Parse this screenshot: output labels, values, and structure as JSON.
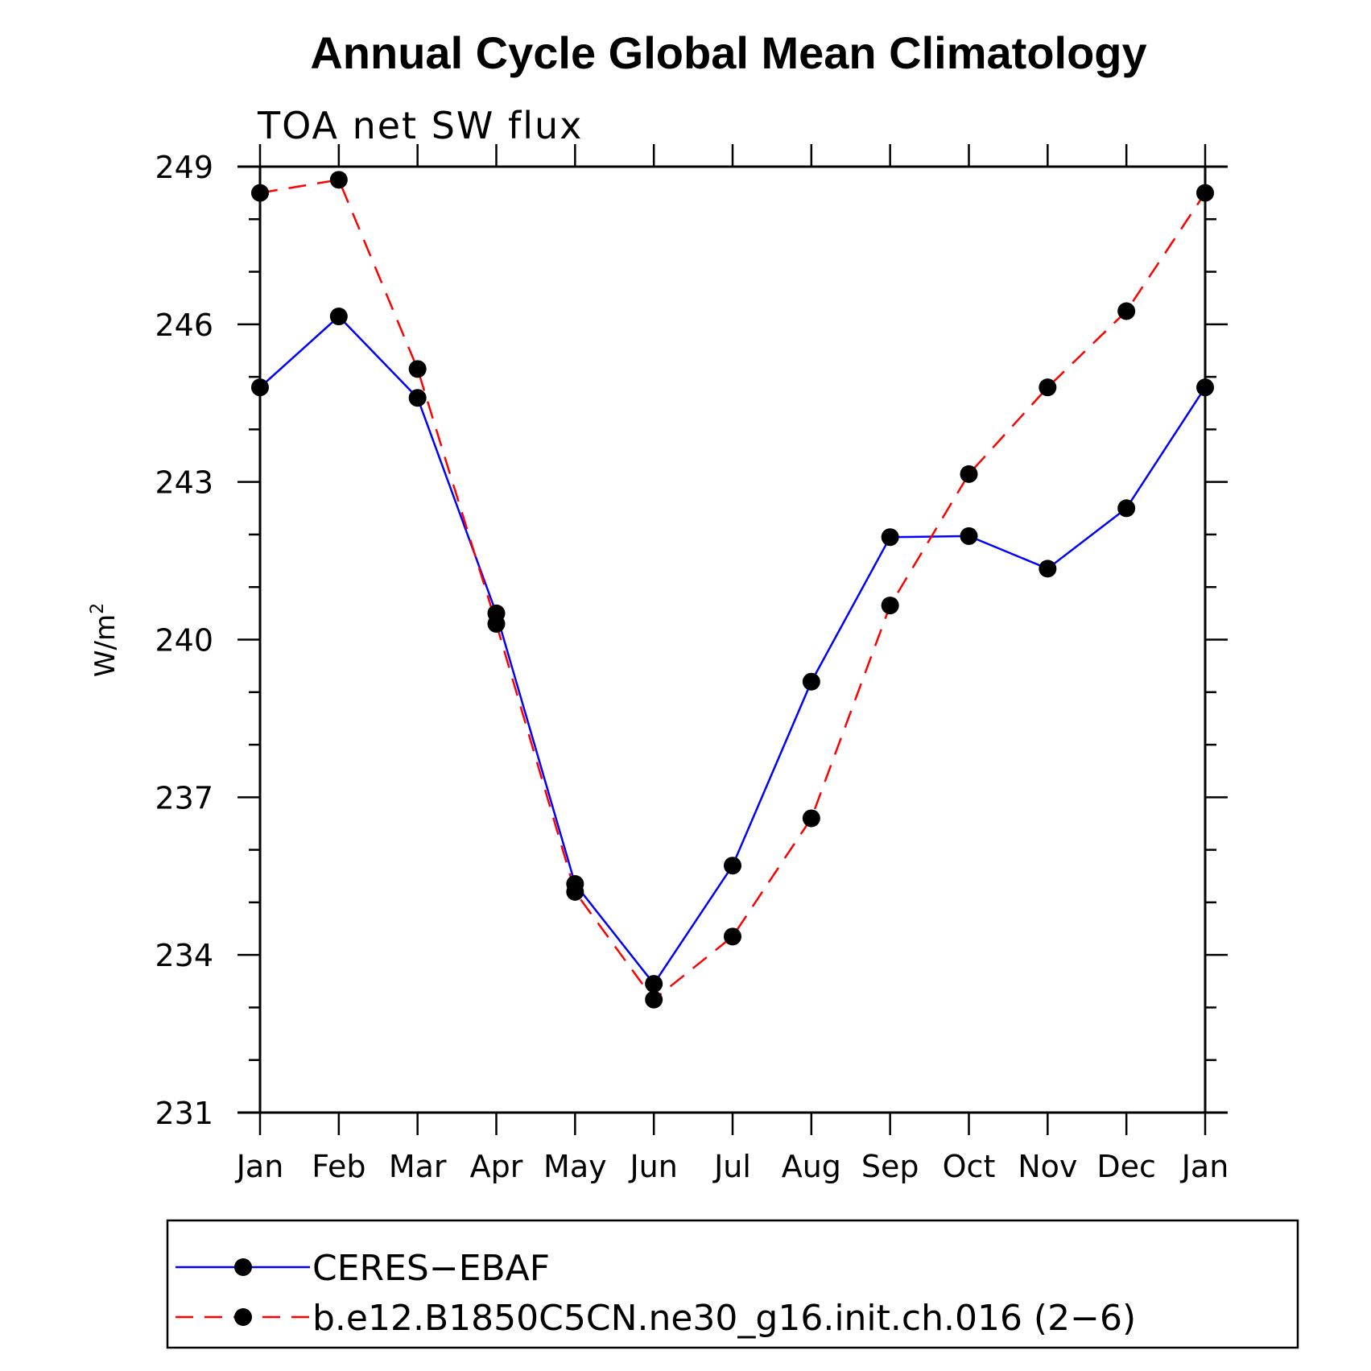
{
  "chart_data": {
    "type": "line",
    "title": "Annual Cycle Global Mean Climatology",
    "subtitle": "TOA net SW flux",
    "ylabel": "W/m²",
    "ylabel_base": "W/m",
    "ylabel_sup": "2",
    "xlabel": "",
    "categories": [
      "Jan",
      "Feb",
      "Mar",
      "Apr",
      "May",
      "Jun",
      "Jul",
      "Aug",
      "Sep",
      "Oct",
      "Nov",
      "Dec",
      "Jan"
    ],
    "ylim": [
      231,
      249
    ],
    "yticks": [
      231,
      234,
      237,
      240,
      243,
      246,
      249
    ],
    "yminor_step": 1,
    "series": [
      {
        "name": "CERES−EBAF",
        "color": "#0000ff",
        "dash": "solid",
        "marker": "circle",
        "values": [
          244.8,
          246.15,
          244.6,
          240.5,
          235.35,
          233.45,
          235.7,
          239.2,
          241.95,
          241.97,
          241.35,
          242.5,
          244.8
        ]
      },
      {
        "name": "b.e12.B1850C5CN.ne30_g16.init.ch.016 (2−6)",
        "color": "#ff0000",
        "dash": "dashed",
        "marker": "circle",
        "values": [
          248.5,
          248.75,
          245.15,
          240.3,
          235.2,
          233.15,
          234.35,
          236.6,
          240.65,
          243.15,
          244.8,
          246.25,
          248.5
        ]
      }
    ],
    "legend_position": "bottom"
  }
}
